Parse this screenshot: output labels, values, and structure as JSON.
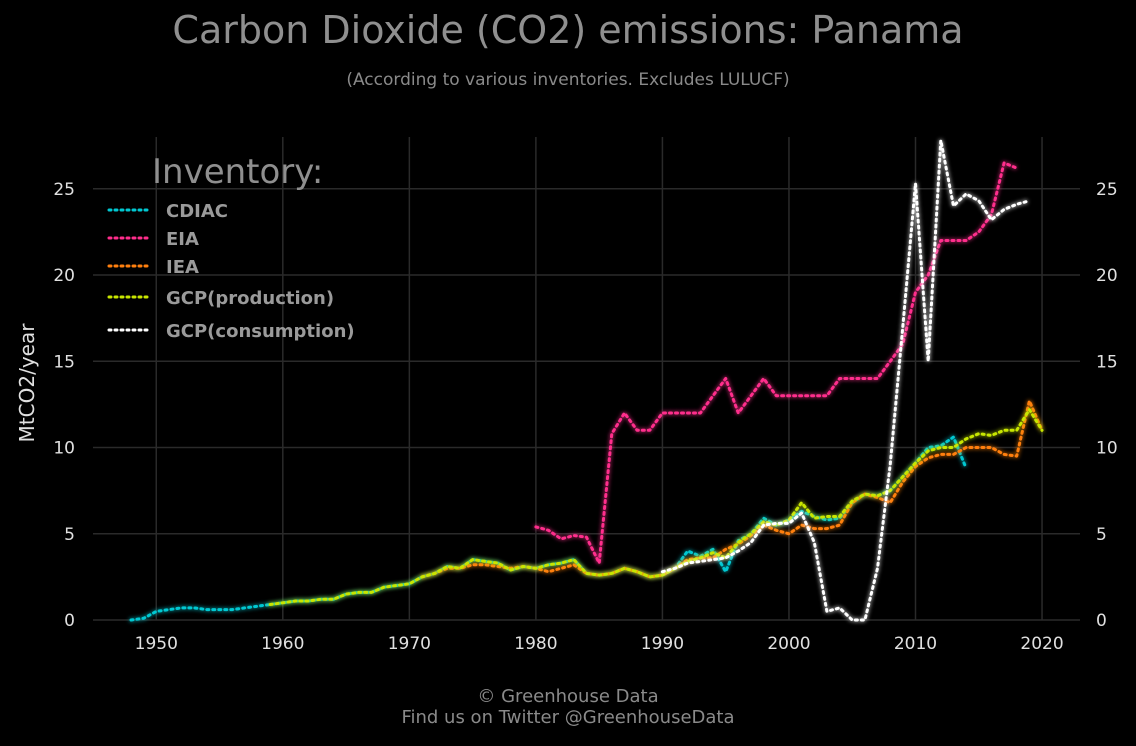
{
  "title": "Carbon Dioxide (CO2) emissions: Panama",
  "subtitle": "(According to various inventories. Excludes LULUCF)",
  "footer": {
    "line1": "© Greenhouse Data",
    "line2": "Find us on Twitter @GreenhouseData"
  },
  "chart_data": {
    "type": "line",
    "ylabel": "MtCO2/year",
    "xlim": [
      1945,
      2023
    ],
    "ylim": [
      0,
      28
    ],
    "xticks": [
      1950,
      1960,
      1970,
      1980,
      1990,
      2000,
      2010,
      2020
    ],
    "yticks": [
      0,
      5,
      10,
      15,
      20,
      25
    ],
    "grid": true,
    "legend_title": "Inventory:",
    "legend_position": "top-left",
    "series": [
      {
        "name": "CDIAC",
        "color": "#00c8d2",
        "x": [
          1948,
          1949,
          1950,
          1951,
          1952,
          1953,
          1954,
          1955,
          1956,
          1957,
          1958,
          1959,
          1960,
          1961,
          1962,
          1963,
          1964,
          1965,
          1966,
          1967,
          1968,
          1969,
          1970,
          1971,
          1972,
          1973,
          1974,
          1975,
          1976,
          1977,
          1978,
          1979,
          1980,
          1981,
          1982,
          1983,
          1984,
          1985,
          1986,
          1987,
          1988,
          1989,
          1990,
          1991,
          1992,
          1993,
          1994,
          1995,
          1996,
          1997,
          1998,
          1999,
          2000,
          2001,
          2002,
          2003,
          2004,
          2005,
          2006,
          2007,
          2008,
          2009,
          2010,
          2011,
          2012,
          2013,
          2014
        ],
        "y": [
          0.0,
          0.1,
          0.5,
          0.6,
          0.7,
          0.7,
          0.6,
          0.6,
          0.6,
          0.7,
          0.8,
          0.9,
          1.0,
          1.1,
          1.1,
          1.2,
          1.2,
          1.5,
          1.6,
          1.6,
          1.9,
          2.0,
          2.1,
          2.5,
          2.7,
          3.1,
          3.0,
          3.5,
          3.4,
          3.3,
          2.9,
          3.1,
          3.0,
          3.2,
          3.3,
          3.5,
          2.7,
          2.6,
          2.7,
          3.0,
          2.8,
          2.5,
          2.6,
          3.0,
          4.0,
          3.7,
          4.1,
          2.8,
          4.6,
          5.0,
          5.9,
          5.5,
          5.8,
          6.3,
          6.0,
          5.8,
          5.9,
          6.8,
          7.3,
          7.2,
          7.5,
          8.3,
          9.1,
          10.0,
          10.1,
          10.6,
          8.8
        ]
      },
      {
        "name": "EIA",
        "color": "#ff2d8c",
        "x": [
          1980,
          1981,
          1982,
          1983,
          1984,
          1985,
          1986,
          1987,
          1988,
          1989,
          1990,
          1991,
          1992,
          1993,
          1994,
          1995,
          1996,
          1997,
          1998,
          1999,
          2000,
          2001,
          2002,
          2003,
          2004,
          2005,
          2006,
          2007,
          2008,
          2009,
          2010,
          2011,
          2012,
          2013,
          2014,
          2015,
          2016,
          2017,
          2018
        ],
        "y": [
          5.4,
          5.2,
          4.7,
          4.9,
          4.8,
          3.3,
          10.8,
          12.0,
          11.0,
          11.0,
          12.0,
          12.0,
          12.0,
          12.0,
          13.0,
          14.0,
          12.0,
          13.0,
          14.0,
          13.0,
          13.0,
          13.0,
          13.0,
          13.0,
          14.0,
          14.0,
          14.0,
          14.0,
          15.0,
          16.0,
          19.0,
          20.0,
          22.0,
          22.0,
          22.0,
          22.5,
          23.5,
          26.5,
          26.2
        ]
      },
      {
        "name": "IEA",
        "color": "#ff7f0e",
        "x": [
          1971,
          1972,
          1973,
          1974,
          1975,
          1976,
          1977,
          1978,
          1979,
          1980,
          1981,
          1982,
          1983,
          1984,
          1985,
          1986,
          1987,
          1988,
          1989,
          1990,
          1991,
          1992,
          1993,
          1994,
          1995,
          1996,
          1997,
          1998,
          1999,
          2000,
          2001,
          2002,
          2003,
          2004,
          2005,
          2006,
          2007,
          2008,
          2009,
          2010,
          2011,
          2012,
          2013,
          2014,
          2015,
          2016,
          2017,
          2018,
          2019,
          2020
        ],
        "y": [
          2.5,
          2.7,
          3.0,
          3.0,
          3.2,
          3.2,
          3.1,
          3.0,
          3.1,
          3.0,
          2.8,
          3.0,
          3.2,
          2.7,
          2.6,
          2.7,
          3.0,
          2.8,
          2.5,
          2.6,
          3.0,
          3.5,
          3.6,
          3.6,
          4.1,
          4.4,
          4.9,
          5.5,
          5.2,
          5.0,
          5.5,
          5.3,
          5.3,
          5.5,
          6.8,
          7.3,
          7.1,
          6.8,
          8.0,
          8.9,
          9.4,
          9.6,
          9.6,
          10.0,
          10.0,
          10.0,
          9.6,
          9.5,
          12.7,
          11.0
        ]
      },
      {
        "name": "GCP(production)",
        "color": "#c8e600",
        "x": [
          1959,
          1960,
          1961,
          1962,
          1963,
          1964,
          1965,
          1966,
          1967,
          1968,
          1969,
          1970,
          1971,
          1972,
          1973,
          1974,
          1975,
          1976,
          1977,
          1978,
          1979,
          1980,
          1981,
          1982,
          1983,
          1984,
          1985,
          1986,
          1987,
          1988,
          1989,
          1990,
          1991,
          1992,
          1993,
          1994,
          1995,
          1996,
          1997,
          1998,
          1999,
          2000,
          2001,
          2002,
          2003,
          2004,
          2005,
          2006,
          2007,
          2008,
          2009,
          2010,
          2011,
          2012,
          2013,
          2014,
          2015,
          2016,
          2017,
          2018,
          2019,
          2020
        ],
        "y": [
          0.9,
          1.0,
          1.1,
          1.1,
          1.2,
          1.2,
          1.5,
          1.6,
          1.6,
          1.9,
          2.0,
          2.1,
          2.5,
          2.7,
          3.1,
          3.0,
          3.5,
          3.4,
          3.3,
          2.9,
          3.1,
          3.0,
          3.2,
          3.3,
          3.5,
          2.7,
          2.6,
          2.7,
          3.0,
          2.8,
          2.5,
          2.6,
          3.0,
          3.4,
          3.6,
          3.9,
          3.6,
          4.5,
          5.0,
          5.7,
          5.5,
          5.8,
          6.8,
          5.9,
          6.0,
          6.0,
          6.9,
          7.3,
          7.2,
          7.5,
          8.3,
          9.1,
          9.8,
          10.0,
          10.0,
          10.5,
          10.8,
          10.7,
          11.0,
          11.0,
          12.2,
          11.0
        ]
      },
      {
        "name": "GCP(consumption)",
        "color": "#ffffff",
        "x": [
          1990,
          1991,
          1992,
          1993,
          1994,
          1995,
          1996,
          1997,
          1998,
          1999,
          2000,
          2001,
          2002,
          2003,
          2004,
          2005,
          2006,
          2007,
          2008,
          2009,
          2010,
          2011,
          2012,
          2013,
          2014,
          2015,
          2016,
          2017,
          2018,
          2019
        ],
        "y": [
          2.8,
          3.0,
          3.3,
          3.4,
          3.5,
          3.6,
          4.0,
          4.5,
          5.5,
          5.6,
          5.6,
          6.2,
          4.5,
          0.5,
          0.7,
          0.0,
          0.0,
          3.0,
          9.0,
          17.0,
          25.3,
          15.0,
          27.8,
          24.0,
          24.7,
          24.3,
          23.2,
          23.8,
          24.1,
          24.3
        ]
      }
    ]
  }
}
